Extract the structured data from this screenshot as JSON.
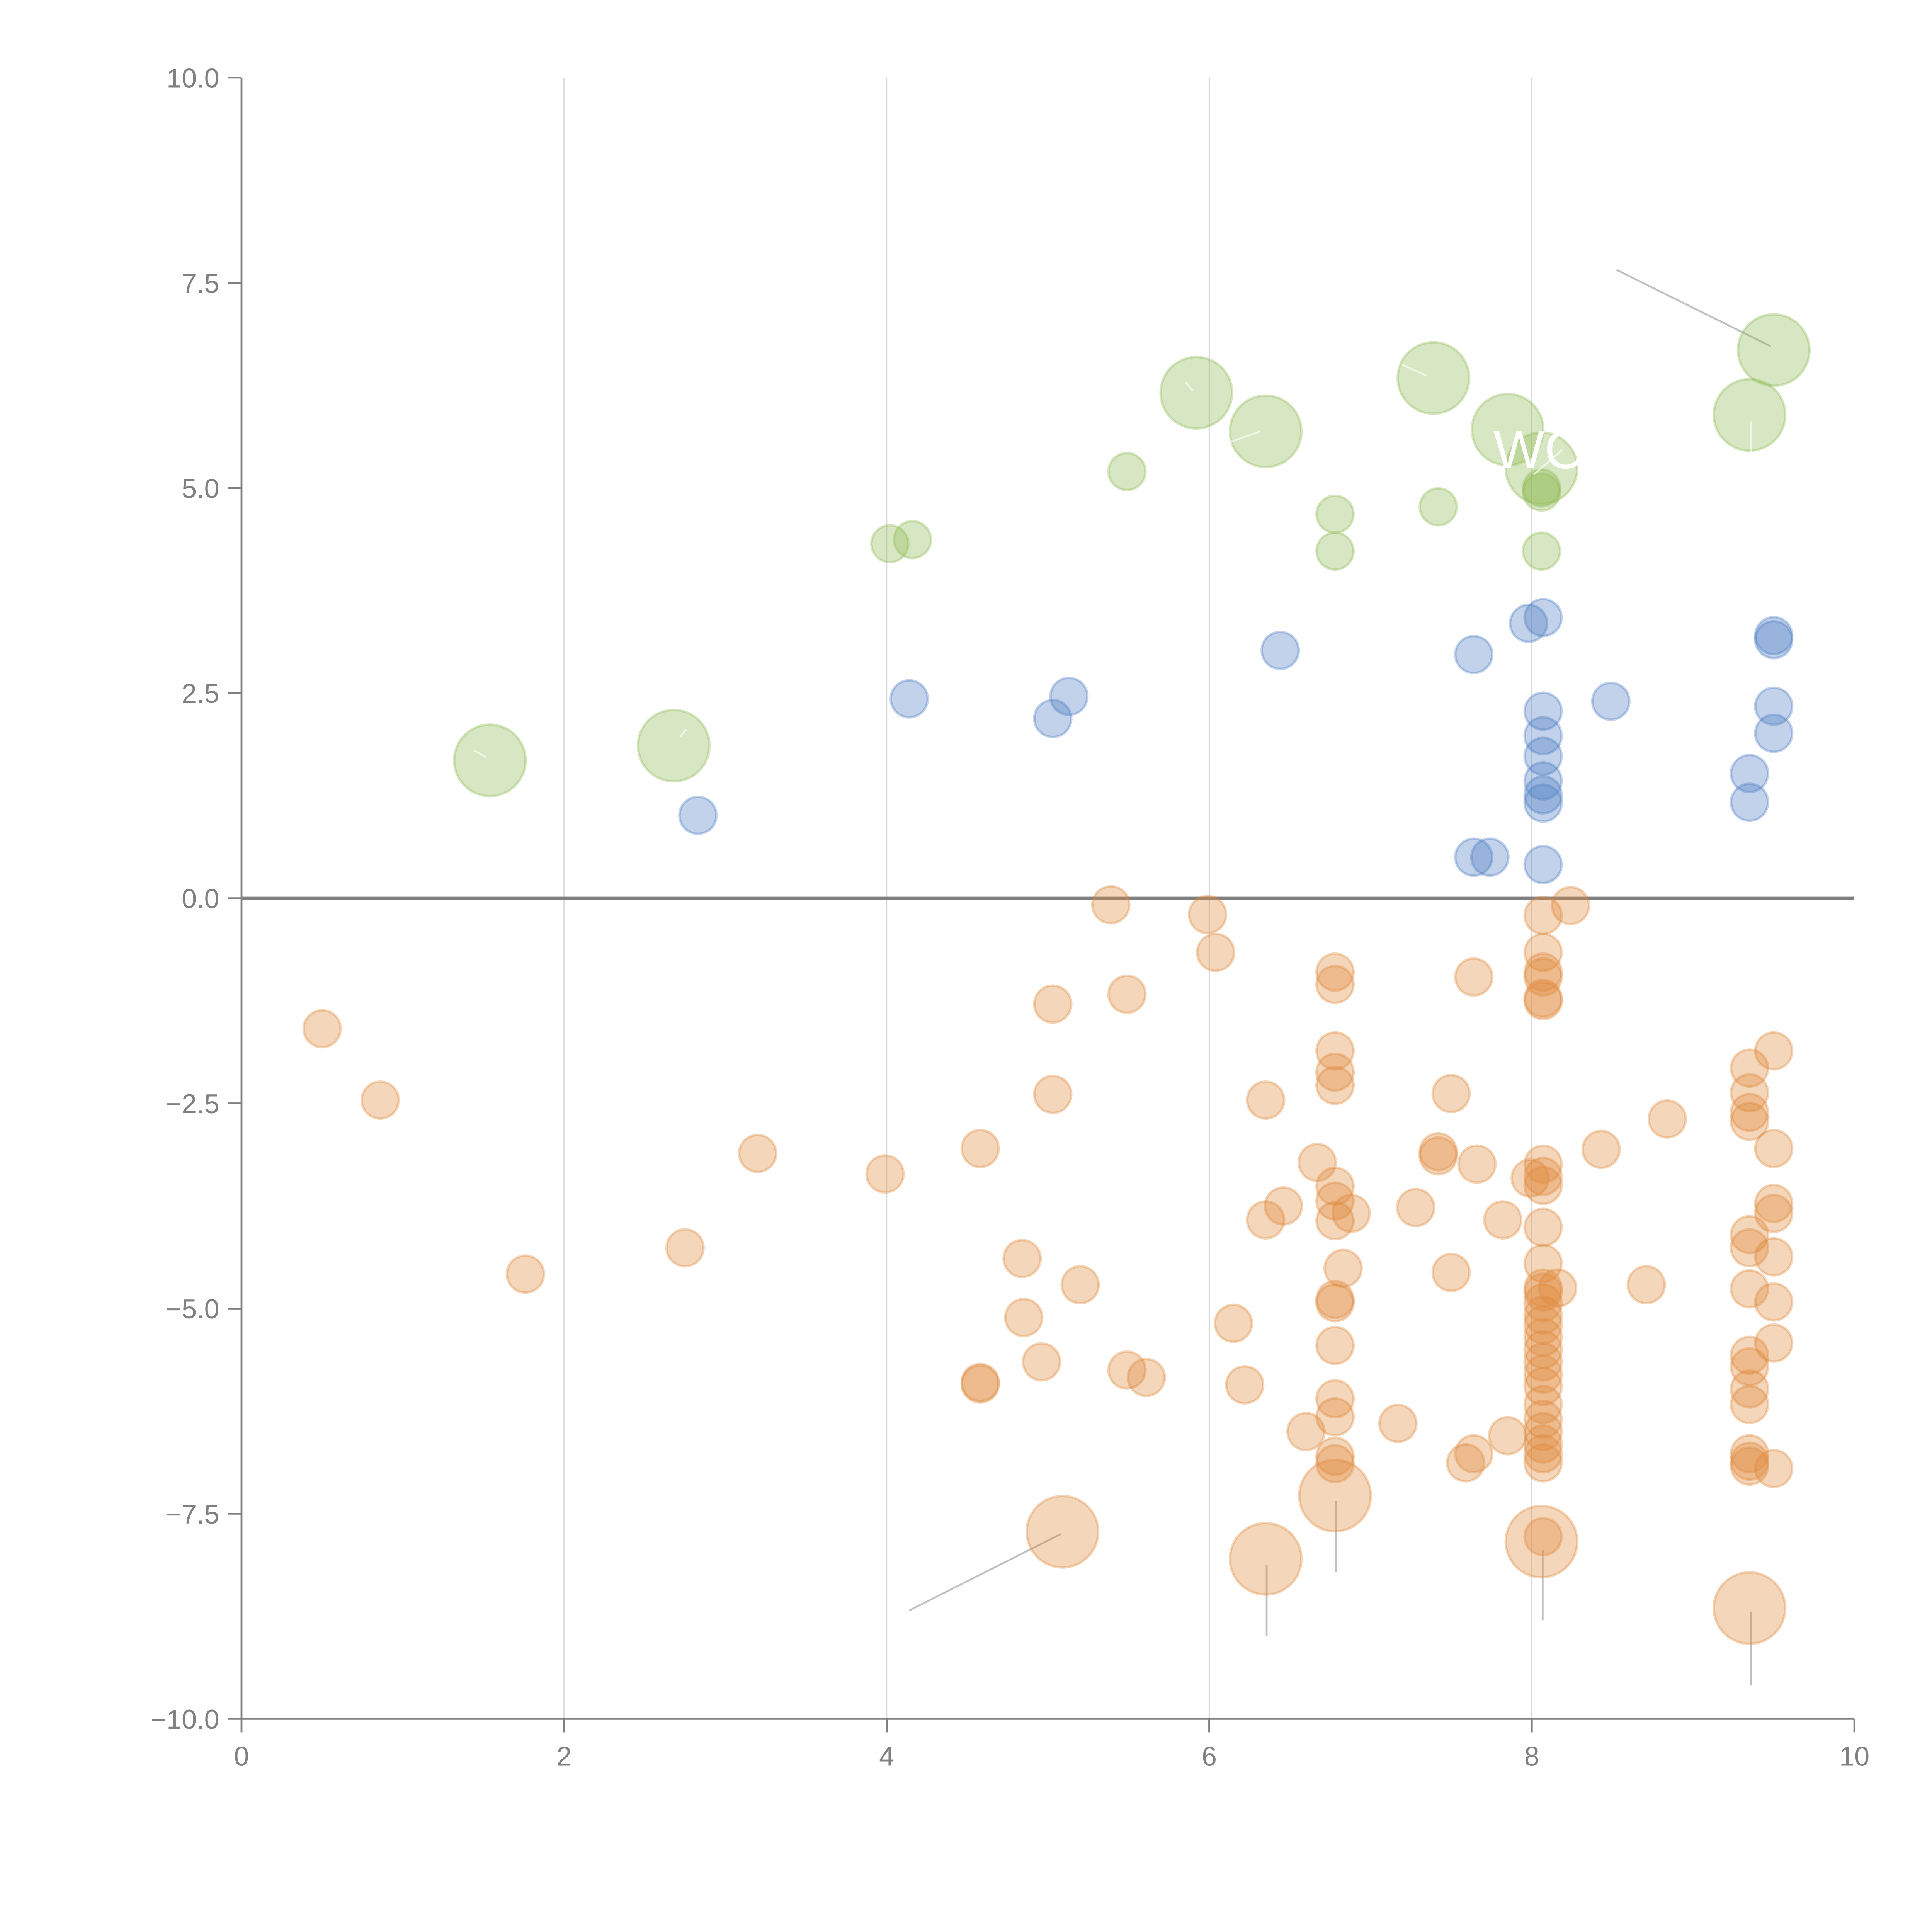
{
  "chart_data": {
    "type": "scatter",
    "title": "",
    "xlabel": "",
    "ylabel": "",
    "xlim": [
      0,
      10
    ],
    "ylim": [
      -10,
      10
    ],
    "xticks": [
      "0",
      "2",
      "4",
      "6",
      "8",
      "10"
    ],
    "xtick_values": [
      0,
      2,
      4,
      6,
      8,
      10
    ],
    "yticks": [
      "10.0",
      "7.5",
      "5.0",
      "2.5",
      "0.0",
      "−2.5",
      "−5.0",
      "−7.5",
      "−10.0"
    ],
    "ytick_values": [
      10,
      7.5,
      5,
      2.5,
      0,
      -2.5,
      -5,
      -7.5,
      -10
    ],
    "grid": "vertical",
    "zero_line": true,
    "legend": "none",
    "colors": {
      "green_fill": "#8fb954",
      "green_stroke": "#8fb954",
      "blue_fill": "#4e7fc4",
      "blue_stroke": "#4e7fc4",
      "orange_fill": "#e08a3c",
      "orange_stroke": "#e08a3c",
      "axis": "#808080",
      "grid": "#d9d9d9",
      "leader": "#a6a6a6"
    },
    "series": [
      {
        "name": "green",
        "points": [
          {
            "x": 1.54,
            "y": 1.68,
            "size": "large"
          },
          {
            "x": 2.68,
            "y": 1.86,
            "size": "large"
          },
          {
            "x": 5.92,
            "y": 6.16,
            "size": "large"
          },
          {
            "x": 6.35,
            "y": 5.69,
            "size": "large"
          },
          {
            "x": 7.39,
            "y": 6.34,
            "size": "large"
          },
          {
            "x": 7.85,
            "y": 5.71,
            "size": "large"
          },
          {
            "x": 8.06,
            "y": 5.24,
            "size": "large"
          },
          {
            "x": 9.5,
            "y": 6.68,
            "size": "large"
          },
          {
            "x": 9.35,
            "y": 5.89,
            "size": "large"
          },
          {
            "x": 4.02,
            "y": 4.32,
            "size": "small"
          },
          {
            "x": 4.16,
            "y": 4.37,
            "size": "small"
          },
          {
            "x": 5.49,
            "y": 5.2,
            "size": "small"
          },
          {
            "x": 6.78,
            "y": 4.68,
            "size": "small"
          },
          {
            "x": 6.78,
            "y": 4.23,
            "size": "small"
          },
          {
            "x": 7.42,
            "y": 4.77,
            "size": "small"
          },
          {
            "x": 8.06,
            "y": 5.0,
            "size": "small"
          },
          {
            "x": 8.06,
            "y": 4.95,
            "size": "small"
          },
          {
            "x": 8.06,
            "y": 4.23,
            "size": "small"
          }
        ]
      },
      {
        "name": "blue",
        "points": [
          {
            "x": 2.83,
            "y": 1.01
          },
          {
            "x": 4.14,
            "y": 2.43
          },
          {
            "x": 5.03,
            "y": 2.19
          },
          {
            "x": 5.13,
            "y": 2.46
          },
          {
            "x": 6.44,
            "y": 3.02
          },
          {
            "x": 7.64,
            "y": 2.97
          },
          {
            "x": 7.98,
            "y": 3.35
          },
          {
            "x": 8.07,
            "y": 3.42
          },
          {
            "x": 8.49,
            "y": 2.4
          },
          {
            "x": 9.5,
            "y": 3.2
          },
          {
            "x": 9.5,
            "y": 3.15
          },
          {
            "x": 9.5,
            "y": 2.34
          },
          {
            "x": 9.5,
            "y": 2.01
          },
          {
            "x": 9.35,
            "y": 1.52
          },
          {
            "x": 9.35,
            "y": 1.17
          },
          {
            "x": 8.07,
            "y": 2.28
          },
          {
            "x": 8.07,
            "y": 1.98
          },
          {
            "x": 8.07,
            "y": 1.73
          },
          {
            "x": 8.07,
            "y": 1.43
          },
          {
            "x": 8.07,
            "y": 1.26
          },
          {
            "x": 8.07,
            "y": 1.16
          },
          {
            "x": 7.64,
            "y": 0.5
          },
          {
            "x": 7.74,
            "y": 0.5
          },
          {
            "x": 8.07,
            "y": 0.41
          }
        ]
      },
      {
        "name": "orange",
        "points": [
          {
            "x": 0.5,
            "y": -1.59
          },
          {
            "x": 0.86,
            "y": -2.46
          },
          {
            "x": 1.76,
            "y": -4.58
          },
          {
            "x": 2.75,
            "y": -4.26
          },
          {
            "x": 3.2,
            "y": -3.11
          },
          {
            "x": 3.99,
            "y": -3.36
          },
          {
            "x": 4.58,
            "y": -3.05
          },
          {
            "x": 4.84,
            "y": -4.39
          },
          {
            "x": 4.85,
            "y": -5.11
          },
          {
            "x": 4.96,
            "y": -5.65
          },
          {
            "x": 5.03,
            "y": -1.29
          },
          {
            "x": 5.03,
            "y": -2.39
          },
          {
            "x": 5.2,
            "y": -4.71
          },
          {
            "x": 4.58,
            "y": -5.9
          },
          {
            "x": 4.58,
            "y": -5.92
          },
          {
            "x": 5.39,
            "y": -0.08
          },
          {
            "x": 5.49,
            "y": -1.17
          },
          {
            "x": 5.49,
            "y": -5.75
          },
          {
            "x": 5.61,
            "y": -5.84
          },
          {
            "x": 5.99,
            "y": -0.2
          },
          {
            "x": 6.04,
            "y": -0.66
          },
          {
            "x": 6.15,
            "y": -5.18
          },
          {
            "x": 6.22,
            "y": -5.93
          },
          {
            "x": 6.35,
            "y": -2.46
          },
          {
            "x": 6.35,
            "y": -3.92
          },
          {
            "x": 6.46,
            "y": -3.75
          },
          {
            "x": 6.6,
            "y": -6.5
          },
          {
            "x": 6.67,
            "y": -3.22
          },
          {
            "x": 6.78,
            "y": -0.9
          },
          {
            "x": 6.78,
            "y": -1.05
          },
          {
            "x": 6.78,
            "y": -1.86
          },
          {
            "x": 6.78,
            "y": -2.12
          },
          {
            "x": 6.78,
            "y": -2.28
          },
          {
            "x": 6.78,
            "y": -3.51
          },
          {
            "x": 6.78,
            "y": -3.69
          },
          {
            "x": 6.78,
            "y": -3.93
          },
          {
            "x": 6.88,
            "y": -3.84
          },
          {
            "x": 6.83,
            "y": -4.51
          },
          {
            "x": 6.78,
            "y": -4.89
          },
          {
            "x": 6.78,
            "y": -4.93
          },
          {
            "x": 6.78,
            "y": -5.45
          },
          {
            "x": 6.78,
            "y": -6.1
          },
          {
            "x": 6.78,
            "y": -6.32
          },
          {
            "x": 6.78,
            "y": -6.8
          },
          {
            "x": 6.78,
            "y": -6.89
          },
          {
            "x": 7.17,
            "y": -6.4
          },
          {
            "x": 7.28,
            "y": -3.77
          },
          {
            "x": 7.42,
            "y": -3.09
          },
          {
            "x": 7.42,
            "y": -3.14
          },
          {
            "x": 7.5,
            "y": -2.38
          },
          {
            "x": 7.5,
            "y": -4.56
          },
          {
            "x": 7.64,
            "y": -0.96
          },
          {
            "x": 7.66,
            "y": -3.24
          },
          {
            "x": 7.59,
            "y": -6.88
          },
          {
            "x": 7.64,
            "y": -6.77
          },
          {
            "x": 7.82,
            "y": -3.92
          },
          {
            "x": 7.85,
            "y": -6.55
          },
          {
            "x": 8.07,
            "y": -0.21
          },
          {
            "x": 8.07,
            "y": -0.66
          },
          {
            "x": 8.07,
            "y": -0.9
          },
          {
            "x": 8.07,
            "y": -0.96
          },
          {
            "x": 8.07,
            "y": -1.22
          },
          {
            "x": 8.07,
            "y": -1.25
          },
          {
            "x": 8.07,
            "y": -3.24
          },
          {
            "x": 8.07,
            "y": -3.39
          },
          {
            "x": 8.07,
            "y": -3.5
          },
          {
            "x": 8.07,
            "y": -4.01
          },
          {
            "x": 8.07,
            "y": -4.45
          },
          {
            "x": 8.07,
            "y": -4.75
          },
          {
            "x": 8.07,
            "y": -4.8
          },
          {
            "x": 8.07,
            "y": -4.93
          },
          {
            "x": 8.07,
            "y": -5.08
          },
          {
            "x": 8.07,
            "y": -5.2
          },
          {
            "x": 8.07,
            "y": -5.35
          },
          {
            "x": 8.07,
            "y": -5.5
          },
          {
            "x": 8.07,
            "y": -5.65
          },
          {
            "x": 8.07,
            "y": -5.8
          },
          {
            "x": 8.07,
            "y": -5.95
          },
          {
            "x": 8.07,
            "y": -6.17
          },
          {
            "x": 8.07,
            "y": -6.35
          },
          {
            "x": 8.07,
            "y": -6.5
          },
          {
            "x": 8.07,
            "y": -6.65
          },
          {
            "x": 8.07,
            "y": -6.77
          },
          {
            "x": 8.07,
            "y": -6.88
          },
          {
            "x": 8.24,
            "y": -0.09
          },
          {
            "x": 7.99,
            "y": -3.41
          },
          {
            "x": 8.16,
            "y": -4.75
          },
          {
            "x": 8.43,
            "y": -3.06
          },
          {
            "x": 8.71,
            "y": -4.71
          },
          {
            "x": 8.84,
            "y": -2.69
          },
          {
            "x": 9.35,
            "y": -2.07
          },
          {
            "x": 9.35,
            "y": -2.37
          },
          {
            "x": 9.35,
            "y": -2.61
          },
          {
            "x": 9.35,
            "y": -2.72
          },
          {
            "x": 9.35,
            "y": -4.1
          },
          {
            "x": 9.35,
            "y": -4.26
          },
          {
            "x": 9.35,
            "y": -4.76
          },
          {
            "x": 9.35,
            "y": -5.57
          },
          {
            "x": 9.35,
            "y": -5.71
          },
          {
            "x": 9.35,
            "y": -5.98
          },
          {
            "x": 9.35,
            "y": -6.17
          },
          {
            "x": 9.35,
            "y": -6.77
          },
          {
            "x": 9.35,
            "y": -6.86
          },
          {
            "x": 9.35,
            "y": -6.92
          },
          {
            "x": 9.5,
            "y": -1.86
          },
          {
            "x": 9.5,
            "y": -3.05
          },
          {
            "x": 9.5,
            "y": -3.72
          },
          {
            "x": 9.5,
            "y": -3.84
          },
          {
            "x": 9.5,
            "y": -4.37
          },
          {
            "x": 9.5,
            "y": -4.92
          },
          {
            "x": 9.5,
            "y": -5.42
          },
          {
            "x": 9.5,
            "y": -6.95
          },
          {
            "x": 5.09,
            "y": -7.72,
            "size": "large"
          },
          {
            "x": 6.35,
            "y": -8.05,
            "size": "large"
          },
          {
            "x": 6.78,
            "y": -7.28,
            "size": "large"
          },
          {
            "x": 8.06,
            "y": -7.84,
            "size": "large"
          },
          {
            "x": 9.35,
            "y": -8.65,
            "size": "large"
          },
          {
            "x": 8.07,
            "y": -7.78
          }
        ]
      }
    ],
    "annotations": [
      {
        "text": "WO",
        "x": 7.74,
        "y": 5.5,
        "color": "white"
      }
    ]
  }
}
